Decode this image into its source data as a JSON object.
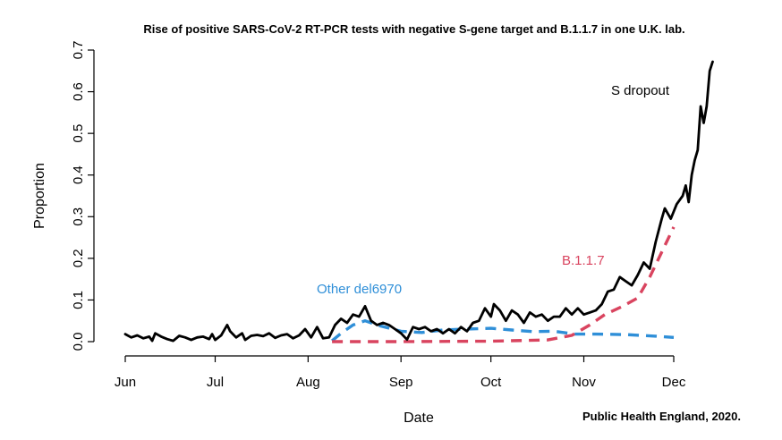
{
  "chart_data": {
    "type": "line",
    "title": "Rise of positive SARS-CoV-2 RT-PCR tests with negative S-gene target and B.1.1.7 in one U.K. lab.",
    "xlabel": "Date",
    "ylabel": "Proportion",
    "x_ticks": [
      "Jun",
      "Jul",
      "Aug",
      "Sep",
      "Oct",
      "Nov",
      "Dec"
    ],
    "x_tick_dates": [
      "2020-06-01",
      "2020-07-01",
      "2020-08-01",
      "2020-09-01",
      "2020-10-01",
      "2020-11-01",
      "2020-12-01"
    ],
    "xlim": [
      "2020-06-01",
      "2020-12-14"
    ],
    "y_ticks": [
      0.0,
      0.1,
      0.2,
      0.3,
      0.4,
      0.5,
      0.6,
      0.7
    ],
    "ylim": [
      0,
      0.7
    ],
    "grid": false,
    "series": [
      {
        "name": "S dropout",
        "color": "#000000",
        "style": "solid",
        "points": [
          [
            "2020-06-01",
            0.018
          ],
          [
            "2020-06-03",
            0.01
          ],
          [
            "2020-06-05",
            0.015
          ],
          [
            "2020-06-07",
            0.008
          ],
          [
            "2020-06-09",
            0.012
          ],
          [
            "2020-06-10",
            0.002
          ],
          [
            "2020-06-11",
            0.02
          ],
          [
            "2020-06-13",
            0.012
          ],
          [
            "2020-06-15",
            0.006
          ],
          [
            "2020-06-17",
            0.002
          ],
          [
            "2020-06-19",
            0.014
          ],
          [
            "2020-06-21",
            0.01
          ],
          [
            "2020-06-23",
            0.004
          ],
          [
            "2020-06-25",
            0.01
          ],
          [
            "2020-06-27",
            0.012
          ],
          [
            "2020-06-29",
            0.006
          ],
          [
            "2020-06-30",
            0.018
          ],
          [
            "2020-07-01",
            0.004
          ],
          [
            "2020-07-03",
            0.015
          ],
          [
            "2020-07-05",
            0.04
          ],
          [
            "2020-07-06",
            0.025
          ],
          [
            "2020-07-08",
            0.01
          ],
          [
            "2020-07-10",
            0.02
          ],
          [
            "2020-07-11",
            0.004
          ],
          [
            "2020-07-13",
            0.014
          ],
          [
            "2020-07-15",
            0.016
          ],
          [
            "2020-07-17",
            0.013
          ],
          [
            "2020-07-19",
            0.02
          ],
          [
            "2020-07-21",
            0.009
          ],
          [
            "2020-07-23",
            0.015
          ],
          [
            "2020-07-25",
            0.018
          ],
          [
            "2020-07-27",
            0.008
          ],
          [
            "2020-07-29",
            0.015
          ],
          [
            "2020-07-31",
            0.03
          ],
          [
            "2020-08-02",
            0.01
          ],
          [
            "2020-08-04",
            0.035
          ],
          [
            "2020-08-06",
            0.008
          ],
          [
            "2020-08-08",
            0.01
          ],
          [
            "2020-08-10",
            0.04
          ],
          [
            "2020-08-12",
            0.055
          ],
          [
            "2020-08-14",
            0.045
          ],
          [
            "2020-08-16",
            0.065
          ],
          [
            "2020-08-18",
            0.06
          ],
          [
            "2020-08-20",
            0.085
          ],
          [
            "2020-08-22",
            0.05
          ],
          [
            "2020-08-24",
            0.04
          ],
          [
            "2020-08-26",
            0.045
          ],
          [
            "2020-08-28",
            0.04
          ],
          [
            "2020-08-30",
            0.03
          ],
          [
            "2020-09-01",
            0.02
          ],
          [
            "2020-09-03",
            0.005
          ],
          [
            "2020-09-05",
            0.035
          ],
          [
            "2020-09-07",
            0.03
          ],
          [
            "2020-09-09",
            0.035
          ],
          [
            "2020-09-11",
            0.025
          ],
          [
            "2020-09-13",
            0.03
          ],
          [
            "2020-09-15",
            0.02
          ],
          [
            "2020-09-17",
            0.03
          ],
          [
            "2020-09-19",
            0.02
          ],
          [
            "2020-09-21",
            0.035
          ],
          [
            "2020-09-23",
            0.025
          ],
          [
            "2020-09-25",
            0.045
          ],
          [
            "2020-09-27",
            0.05
          ],
          [
            "2020-09-29",
            0.08
          ],
          [
            "2020-10-01",
            0.06
          ],
          [
            "2020-10-02",
            0.09
          ],
          [
            "2020-10-04",
            0.075
          ],
          [
            "2020-10-06",
            0.05
          ],
          [
            "2020-10-08",
            0.075
          ],
          [
            "2020-10-10",
            0.065
          ],
          [
            "2020-10-12",
            0.045
          ],
          [
            "2020-10-14",
            0.07
          ],
          [
            "2020-10-16",
            0.06
          ],
          [
            "2020-10-18",
            0.065
          ],
          [
            "2020-10-20",
            0.05
          ],
          [
            "2020-10-22",
            0.06
          ],
          [
            "2020-10-24",
            0.06
          ],
          [
            "2020-10-26",
            0.08
          ],
          [
            "2020-10-28",
            0.065
          ],
          [
            "2020-10-30",
            0.08
          ],
          [
            "2020-11-01",
            0.065
          ],
          [
            "2020-11-03",
            0.07
          ],
          [
            "2020-11-05",
            0.075
          ],
          [
            "2020-11-07",
            0.09
          ],
          [
            "2020-11-09",
            0.12
          ],
          [
            "2020-11-11",
            0.125
          ],
          [
            "2020-11-13",
            0.155
          ],
          [
            "2020-11-15",
            0.145
          ],
          [
            "2020-11-17",
            0.135
          ],
          [
            "2020-11-19",
            0.16
          ],
          [
            "2020-11-21",
            0.19
          ],
          [
            "2020-11-23",
            0.175
          ],
          [
            "2020-11-25",
            0.24
          ],
          [
            "2020-11-27",
            0.295
          ],
          [
            "2020-11-28",
            0.32
          ],
          [
            "2020-11-30",
            0.295
          ],
          [
            "2020-12-02",
            0.33
          ],
          [
            "2020-12-04",
            0.35
          ],
          [
            "2020-12-05",
            0.375
          ],
          [
            "2020-12-06",
            0.335
          ],
          [
            "2020-12-07",
            0.4
          ],
          [
            "2020-12-08",
            0.435
          ],
          [
            "2020-12-09",
            0.46
          ],
          [
            "2020-12-10",
            0.565
          ],
          [
            "2020-12-11",
            0.525
          ],
          [
            "2020-12-12",
            0.565
          ],
          [
            "2020-12-13",
            0.65
          ],
          [
            "2020-12-14",
            0.672
          ]
        ]
      },
      {
        "name": "Other del6970",
        "color": "#2f8fd8",
        "style": "dashed",
        "points": [
          [
            "2020-08-09",
            0.002
          ],
          [
            "2020-08-12",
            0.02
          ],
          [
            "2020-08-16",
            0.04
          ],
          [
            "2020-08-20",
            0.05
          ],
          [
            "2020-08-25",
            0.038
          ],
          [
            "2020-09-01",
            0.025
          ],
          [
            "2020-09-08",
            0.022
          ],
          [
            "2020-09-15",
            0.028
          ],
          [
            "2020-09-22",
            0.03
          ],
          [
            "2020-10-01",
            0.032
          ],
          [
            "2020-10-08",
            0.028
          ],
          [
            "2020-10-15",
            0.024
          ],
          [
            "2020-10-22",
            0.025
          ],
          [
            "2020-10-29",
            0.018
          ],
          [
            "2020-11-05",
            0.018
          ],
          [
            "2020-11-15",
            0.017
          ],
          [
            "2020-11-25",
            0.013
          ],
          [
            "2020-12-01",
            0.01
          ]
        ]
      },
      {
        "name": "B.1.1.7",
        "color": "#d9445f",
        "style": "dashed",
        "points": [
          [
            "2020-08-09",
            0.0
          ],
          [
            "2020-09-01",
            0.0
          ],
          [
            "2020-10-01",
            0.001
          ],
          [
            "2020-10-20",
            0.004
          ],
          [
            "2020-10-28",
            0.015
          ],
          [
            "2020-11-03",
            0.04
          ],
          [
            "2020-11-08",
            0.065
          ],
          [
            "2020-11-14",
            0.085
          ],
          [
            "2020-11-19",
            0.105
          ],
          [
            "2020-11-23",
            0.155
          ],
          [
            "2020-11-27",
            0.215
          ],
          [
            "2020-12-01",
            0.275
          ]
        ]
      }
    ],
    "annotations": [
      {
        "text": "S dropout",
        "color": "#000000"
      },
      {
        "text": "B.1.1.7",
        "color": "#d9445f"
      },
      {
        "text": "Other del6970",
        "color": "#2f8fd8"
      }
    ],
    "credit": "Public Health England, 2020."
  }
}
